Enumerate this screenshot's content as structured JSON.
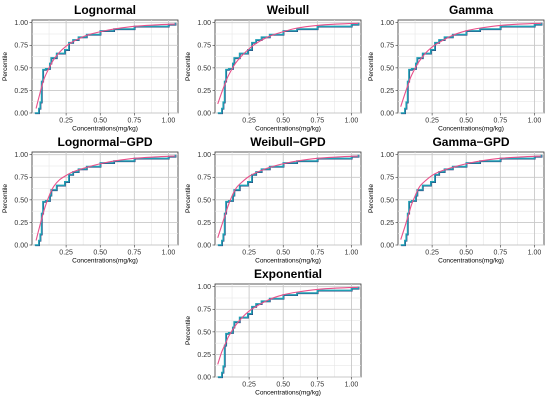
{
  "figure": {
    "background": "#ffffff",
    "colors": {
      "empirical": "#1f9fb4",
      "empirical_shadow": "#2c2c6e",
      "fitted": "#e8508a",
      "grid_major": "#c8c8c8",
      "grid_minor": "#e6e6e6"
    }
  },
  "chart_data": [
    {
      "type": "line",
      "title": "Lognormal",
      "xlabel": "Concentrations(mg/kg)",
      "ylabel": "Percentile",
      "xlim": [
        0,
        1.07
      ],
      "ylim": [
        0,
        1.03
      ],
      "xticks": [
        "0.25",
        "0.50",
        "0.75",
        "1.00"
      ],
      "yticks": [
        "0.00",
        "0.25",
        "0.50",
        "0.75",
        "1.00"
      ],
      "grid": true,
      "series": [
        {
          "kind": "empirical",
          "x": [
            0.02,
            0.05,
            0.06,
            0.07,
            0.08,
            0.1,
            0.13,
            0.14,
            0.18,
            0.24,
            0.27,
            0.3,
            0.34,
            0.4,
            0.5,
            0.6,
            0.75,
            1.0,
            1.05
          ],
          "y": [
            0.0,
            0.05,
            0.12,
            0.35,
            0.48,
            0.49,
            0.55,
            0.61,
            0.66,
            0.7,
            0.78,
            0.81,
            0.84,
            0.87,
            0.91,
            0.93,
            0.96,
            0.98,
            1.0
          ]
        },
        {
          "kind": "fitted",
          "x": [
            0.03,
            0.05,
            0.08,
            0.1,
            0.15,
            0.2,
            0.25,
            0.3,
            0.4,
            0.5,
            0.6,
            0.75,
            0.9,
            1.05
          ],
          "y": [
            0.05,
            0.17,
            0.34,
            0.42,
            0.57,
            0.67,
            0.74,
            0.79,
            0.86,
            0.9,
            0.93,
            0.96,
            0.975,
            0.985
          ]
        }
      ]
    },
    {
      "type": "line",
      "title": "Weibull",
      "xlabel": "Concentrations(mg/kg)",
      "ylabel": "Percentile",
      "xlim": [
        0,
        1.07
      ],
      "ylim": [
        0,
        1.03
      ],
      "xticks": [
        "0.25",
        "0.50",
        "0.75",
        "1.00"
      ],
      "yticks": [
        "0.00",
        "0.25",
        "0.50",
        "0.75",
        "1.00"
      ],
      "grid": true,
      "series": [
        {
          "kind": "empirical",
          "x": [
            0.02,
            0.05,
            0.06,
            0.07,
            0.08,
            0.1,
            0.13,
            0.14,
            0.18,
            0.24,
            0.27,
            0.3,
            0.34,
            0.4,
            0.5,
            0.6,
            0.75,
            1.0,
            1.05
          ],
          "y": [
            0.0,
            0.05,
            0.12,
            0.35,
            0.48,
            0.49,
            0.55,
            0.61,
            0.66,
            0.7,
            0.78,
            0.81,
            0.84,
            0.87,
            0.91,
            0.93,
            0.96,
            0.98,
            1.0
          ]
        },
        {
          "kind": "fitted",
          "x": [
            0.02,
            0.05,
            0.08,
            0.1,
            0.15,
            0.2,
            0.25,
            0.3,
            0.4,
            0.5,
            0.6,
            0.75,
            0.9,
            1.05
          ],
          "y": [
            0.1,
            0.23,
            0.35,
            0.42,
            0.55,
            0.64,
            0.71,
            0.77,
            0.85,
            0.9,
            0.94,
            0.97,
            0.985,
            0.993
          ]
        }
      ]
    },
    {
      "type": "line",
      "title": "Gamma",
      "xlabel": "Concentrations(mg/kg)",
      "ylabel": "Percentile",
      "xlim": [
        0,
        1.07
      ],
      "ylim": [
        0,
        1.03
      ],
      "xticks": [
        "0.25",
        "0.50",
        "0.75",
        "1.00"
      ],
      "yticks": [
        "0.00",
        "0.25",
        "0.50",
        "0.75",
        "1.00"
      ],
      "grid": true,
      "series": [
        {
          "kind": "empirical",
          "x": [
            0.02,
            0.05,
            0.06,
            0.07,
            0.08,
            0.1,
            0.13,
            0.14,
            0.18,
            0.24,
            0.27,
            0.3,
            0.34,
            0.4,
            0.5,
            0.6,
            0.75,
            1.0,
            1.05
          ],
          "y": [
            0.0,
            0.05,
            0.12,
            0.35,
            0.48,
            0.49,
            0.55,
            0.61,
            0.66,
            0.7,
            0.78,
            0.81,
            0.84,
            0.87,
            0.91,
            0.93,
            0.96,
            0.98,
            1.0
          ]
        },
        {
          "kind": "fitted",
          "x": [
            0.02,
            0.05,
            0.08,
            0.1,
            0.15,
            0.2,
            0.25,
            0.3,
            0.4,
            0.5,
            0.6,
            0.75,
            0.9,
            1.05
          ],
          "y": [
            0.07,
            0.21,
            0.34,
            0.42,
            0.56,
            0.66,
            0.73,
            0.78,
            0.86,
            0.91,
            0.94,
            0.97,
            0.985,
            0.993
          ]
        }
      ]
    },
    {
      "type": "line",
      "title": "Lognormal−GPD",
      "xlabel": "Concentrations(mg/kg)",
      "ylabel": "Percentile",
      "xlim": [
        0,
        1.07
      ],
      "ylim": [
        0,
        1.03
      ],
      "xticks": [
        "0.25",
        "0.50",
        "0.75",
        "1.00"
      ],
      "yticks": [
        "0.00",
        "0.25",
        "0.50",
        "0.75",
        "1.00"
      ],
      "grid": true,
      "series": [
        {
          "kind": "empirical",
          "x": [
            0.02,
            0.05,
            0.06,
            0.07,
            0.08,
            0.1,
            0.13,
            0.14,
            0.18,
            0.24,
            0.27,
            0.3,
            0.34,
            0.4,
            0.5,
            0.6,
            0.75,
            1.0,
            1.05
          ],
          "y": [
            0.0,
            0.05,
            0.12,
            0.35,
            0.48,
            0.49,
            0.55,
            0.61,
            0.66,
            0.7,
            0.78,
            0.81,
            0.84,
            0.87,
            0.91,
            0.93,
            0.96,
            0.98,
            1.0
          ]
        },
        {
          "kind": "fitted",
          "x": [
            0.03,
            0.05,
            0.08,
            0.1,
            0.13,
            0.16,
            0.2,
            0.25,
            0.3,
            0.4,
            0.5,
            0.6,
            0.75,
            0.9,
            1.05
          ],
          "y": [
            0.05,
            0.17,
            0.34,
            0.44,
            0.56,
            0.65,
            0.72,
            0.77,
            0.81,
            0.86,
            0.9,
            0.93,
            0.96,
            0.975,
            0.985
          ]
        }
      ]
    },
    {
      "type": "line",
      "title": "Weibull−GPD",
      "xlabel": "Concentrations(mg/kg)",
      "ylabel": "Percentile",
      "xlim": [
        0,
        1.07
      ],
      "ylim": [
        0,
        1.03
      ],
      "xticks": [
        "0.25",
        "0.50",
        "0.75",
        "1.00"
      ],
      "yticks": [
        "0.00",
        "0.25",
        "0.50",
        "0.75",
        "1.00"
      ],
      "grid": true,
      "series": [
        {
          "kind": "empirical",
          "x": [
            0.02,
            0.05,
            0.06,
            0.07,
            0.08,
            0.1,
            0.13,
            0.14,
            0.18,
            0.24,
            0.27,
            0.3,
            0.34,
            0.4,
            0.5,
            0.6,
            0.75,
            1.0,
            1.05
          ],
          "y": [
            0.0,
            0.05,
            0.12,
            0.35,
            0.48,
            0.49,
            0.55,
            0.61,
            0.66,
            0.7,
            0.78,
            0.81,
            0.84,
            0.87,
            0.91,
            0.93,
            0.96,
            0.98,
            1.0
          ]
        },
        {
          "kind": "fitted",
          "x": [
            0.02,
            0.05,
            0.08,
            0.1,
            0.13,
            0.16,
            0.2,
            0.25,
            0.3,
            0.4,
            0.5,
            0.6,
            0.75,
            0.9,
            1.05
          ],
          "y": [
            0.08,
            0.22,
            0.36,
            0.45,
            0.56,
            0.64,
            0.7,
            0.76,
            0.8,
            0.86,
            0.9,
            0.93,
            0.96,
            0.975,
            0.985
          ]
        }
      ]
    },
    {
      "type": "line",
      "title": "Gamma−GPD",
      "xlabel": "Concentrations(mg/kg)",
      "ylabel": "Percentile",
      "xlim": [
        0,
        1.07
      ],
      "ylim": [
        0,
        1.03
      ],
      "xticks": [
        "0.25",
        "0.50",
        "0.75",
        "1.00"
      ],
      "yticks": [
        "0.00",
        "0.25",
        "0.50",
        "0.75",
        "1.00"
      ],
      "grid": true,
      "series": [
        {
          "kind": "empirical",
          "x": [
            0.02,
            0.05,
            0.06,
            0.07,
            0.08,
            0.1,
            0.13,
            0.14,
            0.18,
            0.24,
            0.27,
            0.3,
            0.34,
            0.4,
            0.5,
            0.6,
            0.75,
            1.0,
            1.05
          ],
          "y": [
            0.0,
            0.05,
            0.12,
            0.35,
            0.48,
            0.49,
            0.55,
            0.61,
            0.66,
            0.7,
            0.78,
            0.81,
            0.84,
            0.87,
            0.91,
            0.93,
            0.96,
            0.98,
            1.0
          ]
        },
        {
          "kind": "fitted",
          "x": [
            0.02,
            0.05,
            0.08,
            0.1,
            0.13,
            0.16,
            0.2,
            0.25,
            0.3,
            0.4,
            0.5,
            0.6,
            0.75,
            0.9,
            1.05
          ],
          "y": [
            0.06,
            0.2,
            0.35,
            0.45,
            0.56,
            0.65,
            0.71,
            0.77,
            0.81,
            0.86,
            0.9,
            0.93,
            0.96,
            0.975,
            0.985
          ]
        }
      ]
    },
    {
      "type": "line",
      "title": "Exponential",
      "xlabel": "Concentrations(mg/kg)",
      "ylabel": "Percentile",
      "xlim": [
        0,
        1.07
      ],
      "ylim": [
        0,
        1.03
      ],
      "xticks": [
        "0.25",
        "0.50",
        "0.75",
        "1.00"
      ],
      "yticks": [
        "0.00",
        "0.25",
        "0.50",
        "0.75",
        "1.00"
      ],
      "grid": true,
      "series": [
        {
          "kind": "empirical",
          "x": [
            0.02,
            0.05,
            0.06,
            0.07,
            0.08,
            0.1,
            0.13,
            0.14,
            0.18,
            0.24,
            0.27,
            0.3,
            0.34,
            0.4,
            0.5,
            0.6,
            0.75,
            1.0,
            1.05
          ],
          "y": [
            0.0,
            0.05,
            0.12,
            0.35,
            0.48,
            0.49,
            0.55,
            0.61,
            0.66,
            0.7,
            0.78,
            0.81,
            0.84,
            0.87,
            0.91,
            0.93,
            0.96,
            0.98,
            1.0
          ]
        },
        {
          "kind": "fitted",
          "x": [
            0.02,
            0.05,
            0.08,
            0.1,
            0.15,
            0.2,
            0.25,
            0.3,
            0.4,
            0.5,
            0.6,
            0.75,
            0.9,
            1.05
          ],
          "y": [
            0.14,
            0.28,
            0.38,
            0.45,
            0.57,
            0.66,
            0.73,
            0.78,
            0.86,
            0.91,
            0.94,
            0.97,
            0.985,
            0.993
          ]
        }
      ]
    }
  ]
}
